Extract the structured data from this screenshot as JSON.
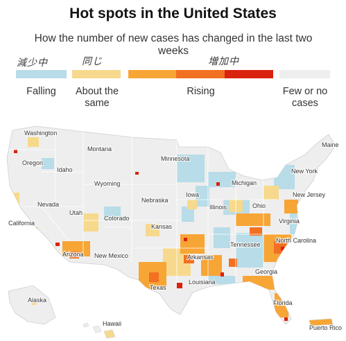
{
  "title": "Hot spots in the United States",
  "subtitle": "How the number of new cases has changed in the last two weeks",
  "handwriting": {
    "falling": "減少中",
    "same": "同じ",
    "rising": "増加中"
  },
  "legend": {
    "categories": [
      {
        "label": "Falling",
        "color": "#b8dce8"
      },
      {
        "label": "About the same",
        "color": "#f6d98c"
      },
      {
        "label": "Rising",
        "colors": [
          "#f7a535",
          "#f27022",
          "#d9230f"
        ]
      },
      {
        "label": "Few or no cases",
        "color": "#eeeeee"
      }
    ]
  },
  "map": {
    "labels": {
      "washington": "Washington",
      "oregon": "Oregon",
      "idaho": "Idaho",
      "montana": "Montana",
      "wyoming": "Wyoming",
      "nevada": "Nevada",
      "utah": "Utah",
      "colorado": "Colorado",
      "california": "California",
      "arizona": "Arizona",
      "new_mexico": "New Mexico",
      "texas": "Texas",
      "minnesota": "Minnesota",
      "iowa": "Iowa",
      "nebraska": "Nebraska",
      "kansas": "Kansas",
      "arkansas": "Arkansas",
      "louisiana": "Louisiana",
      "illinois": "Illinois",
      "michigan": "Michigan",
      "ohio": "Ohio",
      "tennessee": "Tennessee",
      "georgia": "Georgia",
      "florida": "Florida",
      "virginia": "Virginia",
      "north_carolina": "North Carolina",
      "new_york": "New York",
      "new_jersey": "New Jersey",
      "maine": "Maine",
      "alaska": "Alaska",
      "hawaii": "Hawaii",
      "puerto_rico": "Puerto Rico"
    }
  }
}
